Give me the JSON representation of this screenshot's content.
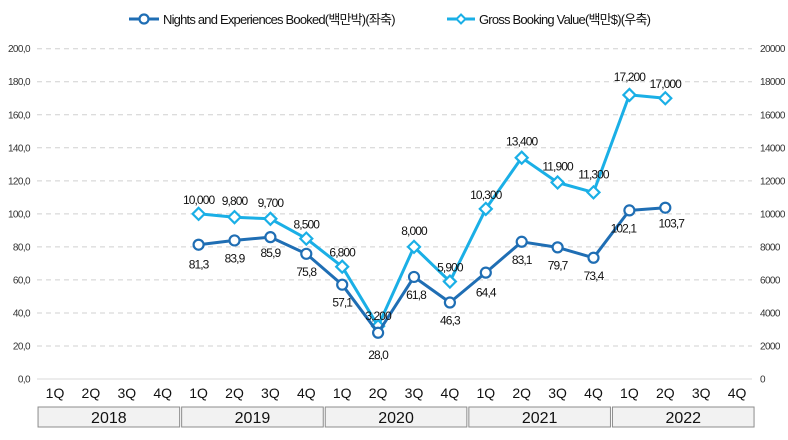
{
  "chart_data": {
    "type": "line",
    "title": "",
    "legend_position": "top-center",
    "grid": "horizontal-dashed",
    "colors": {
      "nights": "#1F6EB4",
      "gbv": "#1AAFE6",
      "grid": "#D0D0D0",
      "year_box_fill": "#F2F2F2",
      "year_box_stroke": "#8C8C8C"
    },
    "years": [
      "2018",
      "2019",
      "2020",
      "2021",
      "2022"
    ],
    "quarter_labels": [
      "1Q",
      "2Q",
      "3Q",
      "4Q"
    ],
    "categories": [
      "2018 1Q",
      "2018 2Q",
      "2018 3Q",
      "2018 4Q",
      "2019 1Q",
      "2019 2Q",
      "2019 3Q",
      "2019 4Q",
      "2020 1Q",
      "2020 2Q",
      "2020 3Q",
      "2020 4Q",
      "2021 1Q",
      "2021 2Q",
      "2021 3Q",
      "2021 4Q",
      "2022 1Q",
      "2022 2Q",
      "2022 3Q",
      "2022 4Q"
    ],
    "left_axis": {
      "ylim": [
        0,
        200
      ],
      "ticks": [
        "0,0",
        "20,0",
        "40,0",
        "60,0",
        "80,0",
        "100,0",
        "120,0",
        "140,0",
        "160,0",
        "180,0",
        "200,0"
      ]
    },
    "right_axis": {
      "ylim": [
        0,
        20000
      ],
      "ticks": [
        "0",
        "2000",
        "4000",
        "6000",
        "8000",
        "10000",
        "12000",
        "14000",
        "16000",
        "18000",
        "20000"
      ]
    },
    "series": [
      {
        "name": "Nights and Experiences Booked(백만박)(좌축)",
        "axis": "left",
        "marker": "circle",
        "values": [
          null,
          null,
          null,
          null,
          81.3,
          83.9,
          85.9,
          75.8,
          57.1,
          28.0,
          61.8,
          46.3,
          64.4,
          83.1,
          79.7,
          73.4,
          102.1,
          103.7,
          null,
          null
        ],
        "labels": [
          null,
          null,
          null,
          null,
          "81,3",
          "83,9",
          "85,9",
          "75,8",
          "57,1",
          "28,0",
          "61,8",
          "46,3",
          "64,4",
          "83,1",
          "79,7",
          "73,4",
          "102,1",
          "103,7",
          null,
          null
        ]
      },
      {
        "name": "Gross Booking Value(백만$)(우축)",
        "axis": "right",
        "marker": "diamond",
        "values": [
          null,
          null,
          null,
          null,
          10000,
          9800,
          9700,
          8500,
          6800,
          3200,
          8000,
          5900,
          10300,
          13400,
          11900,
          11300,
          17200,
          17000,
          null,
          null
        ],
        "labels": [
          null,
          null,
          null,
          null,
          "10,000",
          "9,800",
          "9,700",
          "8,500",
          "6,800",
          "3,200",
          "8,000",
          "5,900",
          "10,300",
          "13,400",
          "11,900",
          "11,300",
          "17,200",
          "17,000",
          null,
          null
        ]
      }
    ]
  }
}
